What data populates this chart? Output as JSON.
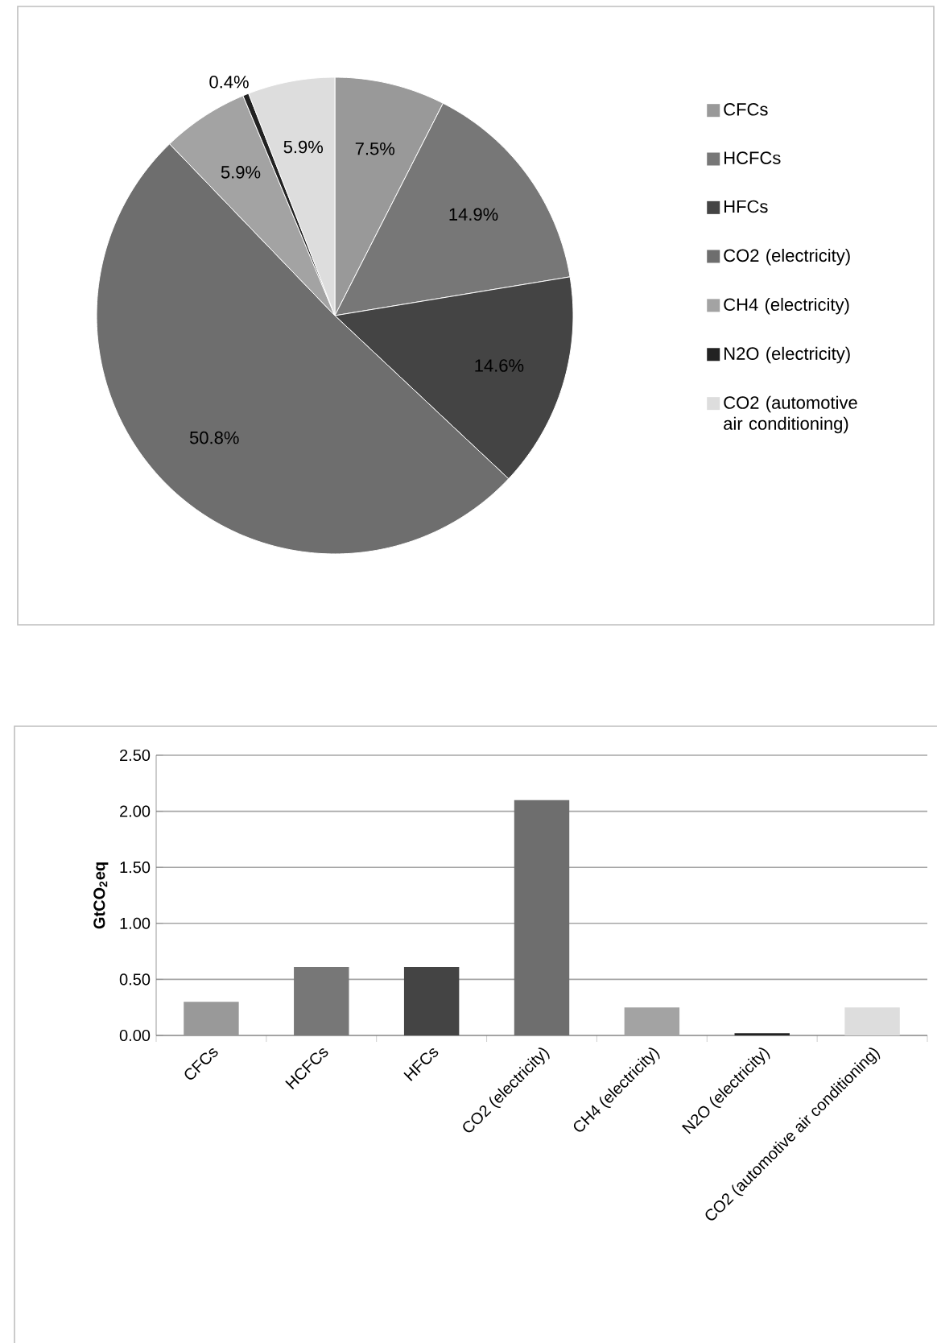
{
  "chart_data": [
    {
      "type": "pie",
      "categories": [
        "CFCs",
        "HCFCs",
        "HFCs",
        "CO2 (electricity)",
        "CH4 (electricity)",
        "N2O (electricity)",
        "CO2 (automotive air conditioning)"
      ],
      "values": [
        7.5,
        14.9,
        14.6,
        50.8,
        5.9,
        0.4,
        5.9
      ],
      "value_labels": [
        "7.5%",
        "14.9%",
        "14.6%",
        "50.8%",
        "5.9%",
        "0.4%",
        "5.9%"
      ],
      "colors": [
        "#999999",
        "#777777",
        "#444444",
        "#6e6e6e",
        "#a3a3a3",
        "#222222",
        "#dddddd"
      ],
      "legend": "right"
    },
    {
      "type": "bar",
      "categories": [
        "CFCs",
        "HCFCs",
        "HFCs",
        "CO2 (electricity)",
        "CH4 (electricity)",
        "N2O (electricity)",
        "CO2 (automotive air conditioning)"
      ],
      "values": [
        0.3,
        0.61,
        0.61,
        2.1,
        0.25,
        0.02,
        0.25
      ],
      "colors": [
        "#999999",
        "#777777",
        "#444444",
        "#6e6e6e",
        "#a3a3a3",
        "#222222",
        "#dddddd"
      ],
      "ylabel": "GtCO$_{2}$eq",
      "ylim": [
        0,
        2.5
      ],
      "yticks": [
        {
          "value": 0,
          "label": "0.00"
        },
        {
          "value": 0.5,
          "label": "0.50"
        },
        {
          "value": 1,
          "label": "1.00"
        },
        {
          "value": 1.5,
          "label": "1.50"
        },
        {
          "value": 2,
          "label": "2.00"
        },
        {
          "value": 2.5,
          "label": "2.50"
        }
      ],
      "grid": "y",
      "legend": false
    }
  ]
}
